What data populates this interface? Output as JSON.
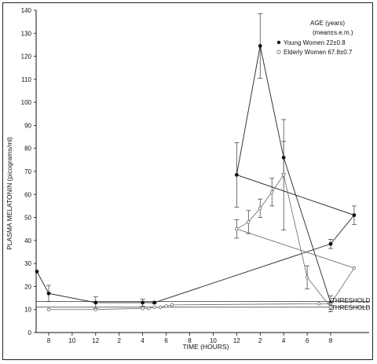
{
  "chart_data": {
    "type": "line",
    "title": "",
    "xlabel": "TIME (HOURS)",
    "ylabel": "PLASMA MELATONIN (picograms/ml)",
    "x_ticks": [
      "8",
      "10",
      "12",
      "2",
      "4",
      "6",
      "8",
      "10",
      "12",
      "2",
      "4",
      "6",
      "8"
    ],
    "ylim": [
      0,
      140
    ],
    "y_ticks": [
      0,
      10,
      20,
      30,
      40,
      50,
      60,
      70,
      80,
      90,
      100,
      110,
      120,
      130,
      140
    ],
    "legend": {
      "title": "AGE (years)",
      "subtitle": "(mean±s.e.m.)",
      "position": "top-right",
      "entries": [
        "Young Women  22±0.8",
        "Elderly Women  67.8±0.7"
      ]
    },
    "threshold_labels": [
      "THRESHOLD",
      "THRESHOLD"
    ],
    "series": [
      {
        "name": "Young Women  22±0.8",
        "marker": "filled-circle",
        "x": [
          "7",
          "8",
          "12",
          "4",
          "5",
          "8",
          "10",
          "12",
          "2",
          "4",
          "8"
        ],
        "values": [
          26.5,
          17,
          13,
          13,
          13,
          38.5,
          51,
          68.5,
          124.5,
          76,
          13
        ],
        "err": [
          0,
          3.5,
          2.5,
          1.5,
          0.5,
          2,
          4,
          14,
          14,
          7,
          3
        ]
      },
      {
        "name": "Elderly Women  67.8±0.7",
        "marker": "open-circle",
        "x": [
          "8",
          "12",
          "4",
          "4:30",
          "5",
          "5:30",
          "6",
          "6:30",
          "7",
          "8",
          "10",
          "12",
          "1",
          "2",
          "3",
          "4",
          "6",
          "8"
        ],
        "values": [
          10,
          10,
          10.5,
          10.5,
          11,
          11,
          11.5,
          12,
          12.5,
          12.5,
          28,
          45,
          48,
          54,
          61,
          68.5,
          24,
          11
        ],
        "err": [
          0,
          0,
          0,
          0,
          0,
          0,
          0,
          0,
          0,
          0,
          0,
          4,
          5,
          4,
          6,
          24,
          5,
          2
        ]
      }
    ],
    "thresholds": [
      {
        "series": "Young Women  22±0.8",
        "y": 13.5
      },
      {
        "series": "Elderly Women  67.8±0.7",
        "y": 11
      }
    ],
    "grid": false
  }
}
